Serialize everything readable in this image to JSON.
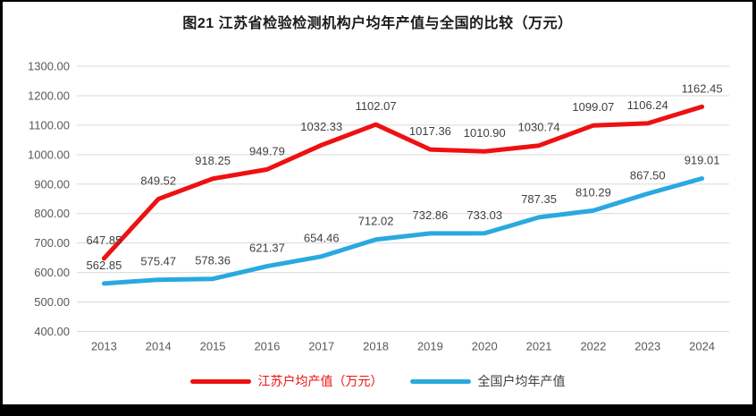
{
  "figure": {
    "title": "图21  江苏省检验检测机构户均年产值与全国的比较（万元）"
  },
  "chart_data": {
    "type": "line",
    "title": "图21  江苏省检验检测机构户均年产值与全国的比较（万元）",
    "categories": [
      "2013",
      "2014",
      "2015",
      "2016",
      "2017",
      "2018",
      "2019",
      "2020",
      "2021",
      "2022",
      "2023",
      "2024"
    ],
    "series": [
      {
        "name": "江苏户均产值（万元）",
        "color": "#ee1111",
        "values": [
          647.85,
          849.52,
          918.25,
          949.79,
          1032.33,
          1102.07,
          1017.36,
          1010.9,
          1030.74,
          1099.07,
          1106.24,
          1162.45
        ]
      },
      {
        "name": "全国户均年产值",
        "color": "#29a9e0",
        "values": [
          562.85,
          575.47,
          578.36,
          621.37,
          654.46,
          712.02,
          732.86,
          733.03,
          787.35,
          810.29,
          867.5,
          919.01
        ]
      }
    ],
    "ylim": [
      400,
      1300
    ],
    "ytick_step": 100,
    "grid": "horizontal-only",
    "legend_position": "bottom",
    "data_labels": "above-points",
    "colors": {
      "grid": "#d9d9d9",
      "axis_text": "#595959",
      "data_label_text": "#404040",
      "frame": "#000000",
      "background": "#ffffff"
    }
  },
  "legend": {
    "items": [
      {
        "label": "江苏户均产值（万元）",
        "swatch_color": "#ee1111",
        "label_color": "#ee1111"
      },
      {
        "label": "全国户均年产值",
        "swatch_color": "#29a9e0",
        "label_color": "#404040"
      }
    ]
  }
}
